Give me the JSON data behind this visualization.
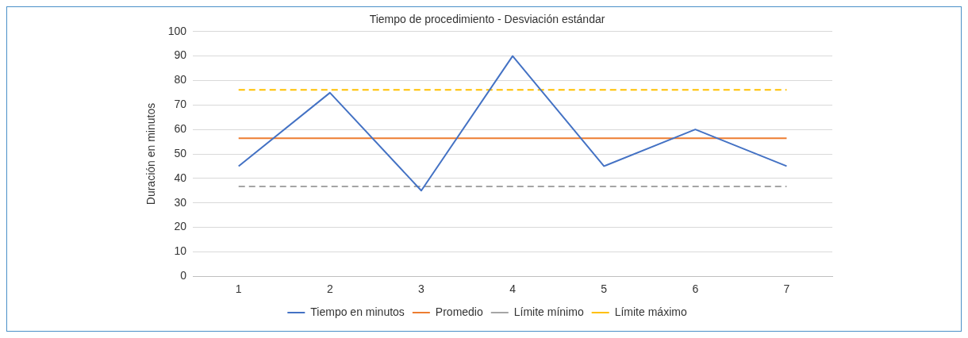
{
  "chart_data": {
    "type": "line",
    "title": "Tiempo de procedimiento - Desviación estándar",
    "ylabel": "Duración en minutos",
    "categories": [
      "1",
      "2",
      "3",
      "4",
      "5",
      "6",
      "7"
    ],
    "series": [
      {
        "name": "Tiempo en minutos",
        "color": "#4472c4",
        "values": [
          45,
          75,
          35,
          90,
          45,
          60,
          45
        ]
      },
      {
        "name": "Promedio",
        "color": "#ed7d31",
        "values": [
          56.4,
          56.4,
          56.4,
          56.4,
          56.4,
          56.4,
          56.4
        ]
      },
      {
        "name": "Límite mínimo",
        "color": "#a5a5a5",
        "line_style": "dashed",
        "values": [
          36.7,
          36.7,
          36.7,
          36.7,
          36.7,
          36.7,
          36.7
        ]
      },
      {
        "name": "Límite máximo",
        "color": "#ffc000",
        "line_style": "dashed",
        "values": [
          76.2,
          76.2,
          76.2,
          76.2,
          76.2,
          76.2,
          76.2
        ]
      }
    ],
    "ylim": [
      0,
      100
    ],
    "yticks": [
      0,
      10,
      20,
      30,
      40,
      50,
      60,
      70,
      80,
      90,
      100
    ],
    "grid": "y",
    "legend": "bottom",
    "marker": "none",
    "line_style": "solid"
  }
}
